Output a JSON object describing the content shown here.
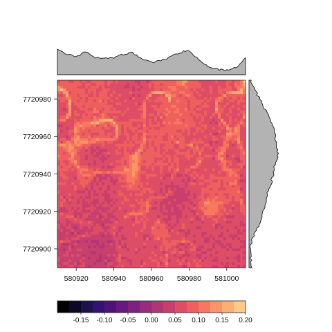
{
  "chart_data": {
    "type": "heatmap",
    "title": "",
    "xlabel": "",
    "ylabel": "",
    "xlim": [
      580910,
      581010
    ],
    "ylim": [
      7720890,
      7720990
    ],
    "x_ticks": [
      580920,
      580940,
      580960,
      580980,
      581000
    ],
    "x_tick_labels": [
      "580920",
      "580940",
      "580960",
      "580980",
      "581000"
    ],
    "y_ticks": [
      7720900,
      7720920,
      7720940,
      7720960,
      7720980
    ],
    "y_tick_labels": [
      "7720900",
      "7720920",
      "7720940",
      "7720960",
      "7720980"
    ],
    "color_scale": {
      "breaks": [
        -0.2,
        -0.175,
        -0.15,
        -0.125,
        -0.1,
        -0.075,
        -0.05,
        -0.025,
        0.0,
        0.025,
        0.05,
        0.075,
        0.1,
        0.125,
        0.15,
        0.175,
        0.2
      ],
      "tick_values": [
        -0.15,
        -0.1,
        -0.05,
        0.0,
        0.05,
        0.1,
        0.15,
        0.2
      ],
      "tick_labels": [
        "-0.15",
        "-0.10",
        "-0.05",
        "0.00",
        "0.05",
        "0.10",
        "0.15",
        "0.20"
      ],
      "colors": [
        "#000004",
        "#0c0926",
        "#1e1150",
        "#351075",
        "#4f127b",
        "#66197f",
        "#7e227f",
        "#972c7c",
        "#b03775",
        "#c83f6e",
        "#dd4d66",
        "#ee5f5d",
        "#f6795f",
        "#fb9467",
        "#fdae77",
        "#fec98d",
        "#fce9a8"
      ]
    },
    "raster_summary": {
      "typical_value": 0.075,
      "high_value_features": "bright network of lines and patches (about 0.12-0.17), densest in the upper-middle and right of the scene",
      "low_value_areas": "darker zones (about 0.03-0.05) toward the bottom-left and lower-middle"
    },
    "top_marginal": {
      "description": "mean value per column, shown as a gray area profile",
      "x": [
        580910,
        580915,
        580920,
        580925,
        580930,
        580935,
        580940,
        580945,
        580950,
        580955,
        580960,
        580965,
        580970,
        580975,
        580980,
        580985,
        580990,
        580995,
        581000,
        581005,
        581010
      ],
      "value": [
        0.88,
        0.72,
        0.65,
        0.8,
        0.62,
        0.55,
        0.6,
        0.72,
        0.78,
        0.55,
        0.42,
        0.5,
        0.62,
        0.78,
        0.85,
        0.55,
        0.3,
        0.2,
        0.15,
        0.25,
        0.6
      ]
    },
    "right_marginal": {
      "description": "mean value per row, shown as a gray area profile",
      "y": [
        7720990,
        7720985,
        7720980,
        7720975,
        7720970,
        7720965,
        7720960,
        7720955,
        7720950,
        7720945,
        7720940,
        7720935,
        7720930,
        7720925,
        7720920,
        7720915,
        7720910,
        7720905,
        7720900,
        7720895,
        7720890
      ],
      "value": [
        0.05,
        0.18,
        0.35,
        0.5,
        0.7,
        0.8,
        0.88,
        0.9,
        0.95,
        0.85,
        0.8,
        0.72,
        0.62,
        0.55,
        0.48,
        0.38,
        0.25,
        0.08,
        0.05,
        0.06,
        0.1
      ]
    }
  }
}
